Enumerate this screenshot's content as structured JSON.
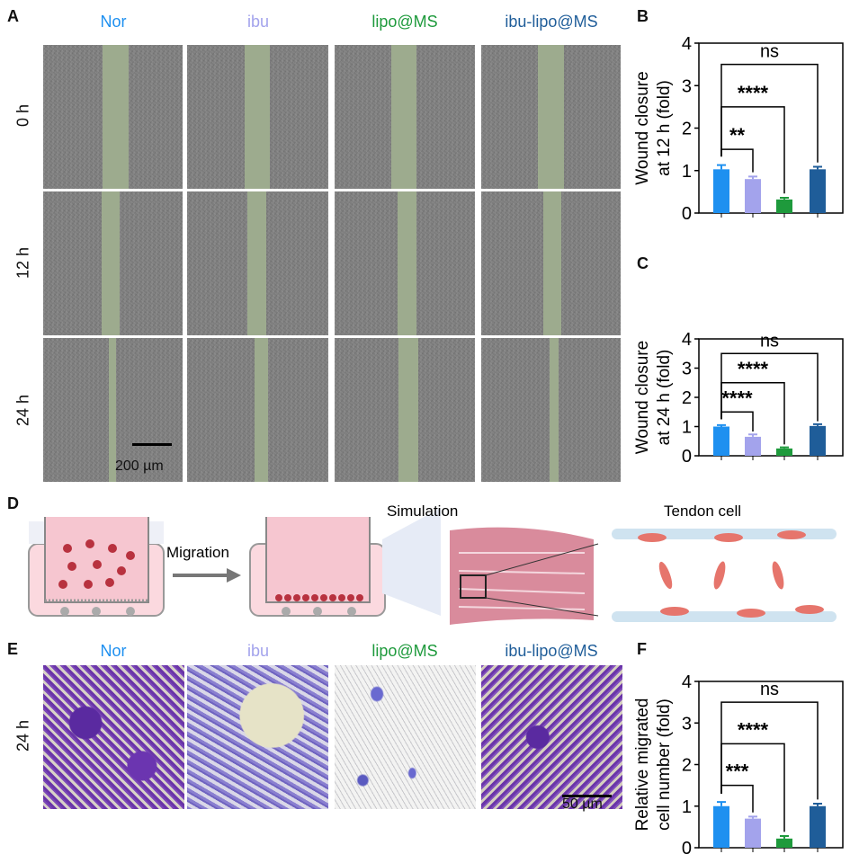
{
  "panels": {
    "A": "A",
    "B": "B",
    "C": "C",
    "D": "D",
    "E": "E",
    "F": "F"
  },
  "groups": [
    {
      "name": "Nor",
      "color": "#1e90f0"
    },
    {
      "name": "ibu",
      "color": "#a3a3ec"
    },
    {
      "name": "lipo@MS",
      "color": "#1e9a3c"
    },
    {
      "name": "ibu-lipo@MS",
      "color": "#1f5d99"
    }
  ],
  "panel_a": {
    "rows": [
      "0 h",
      "12 h",
      "24 h"
    ],
    "scale_bar": "200 µm"
  },
  "panel_d": {
    "migration": "Migration",
    "simulation": "Simulation",
    "tendon_cell": "Tendon cell"
  },
  "panel_e": {
    "row": "24 h",
    "scale_bar": "50 µm"
  },
  "chart_data": [
    {
      "type": "bar",
      "panel": "B",
      "categories": [
        "Nor",
        "ibu",
        "lipo@MS",
        "ibu-lipo@MS"
      ],
      "values": [
        1.03,
        0.8,
        0.32,
        1.03
      ],
      "errors": [
        0.1,
        0.06,
        0.04,
        0.06
      ],
      "ylabel": [
        "Wound closure",
        "at 12 h (fold)"
      ],
      "ylim": [
        0,
        4
      ],
      "yticks": [
        "0",
        "1",
        "2",
        "3",
        "4"
      ],
      "significance": [
        {
          "label": "**",
          "pair": [
            0,
            1
          ],
          "level": 1.5
        },
        {
          "label": "****",
          "pair": [
            0,
            2
          ],
          "level": 2.5
        },
        {
          "label": "ns",
          "pair": [
            0,
            3
          ],
          "level": 3.5
        }
      ]
    },
    {
      "type": "bar",
      "panel": "C",
      "categories": [
        "Nor",
        "ibu",
        "lipo@MS",
        "ibu-lipo@MS"
      ],
      "values": [
        1.0,
        0.65,
        0.25,
        1.02
      ],
      "errors": [
        0.05,
        0.08,
        0.04,
        0.06
      ],
      "ylabel": [
        "Wound closure",
        "at 24 h (fold)"
      ],
      "ylim": [
        0,
        4
      ],
      "yticks": [
        "0",
        "1",
        "2",
        "3",
        "4"
      ],
      "significance": [
        {
          "label": "****",
          "pair": [
            0,
            1
          ],
          "level": 1.5
        },
        {
          "label": "****",
          "pair": [
            0,
            2
          ],
          "level": 2.5
        },
        {
          "label": "ns",
          "pair": [
            0,
            3
          ],
          "level": 3.5
        }
      ]
    },
    {
      "type": "bar",
      "panel": "F",
      "categories": [
        "Nor",
        "ibu",
        "lipo@MS",
        "ibu-lipo@MS"
      ],
      "values": [
        1.0,
        0.7,
        0.22,
        1.0
      ],
      "errors": [
        0.1,
        0.05,
        0.06,
        0.06
      ],
      "ylabel": [
        "Relative migrated",
        "cell number (fold)"
      ],
      "ylim": [
        0,
        4
      ],
      "yticks": [
        "0",
        "1",
        "2",
        "3",
        "4"
      ],
      "significance": [
        {
          "label": "***",
          "pair": [
            0,
            1
          ],
          "level": 1.5
        },
        {
          "label": "****",
          "pair": [
            0,
            2
          ],
          "level": 2.5
        },
        {
          "label": "ns",
          "pair": [
            0,
            3
          ],
          "level": 3.5
        }
      ]
    }
  ]
}
